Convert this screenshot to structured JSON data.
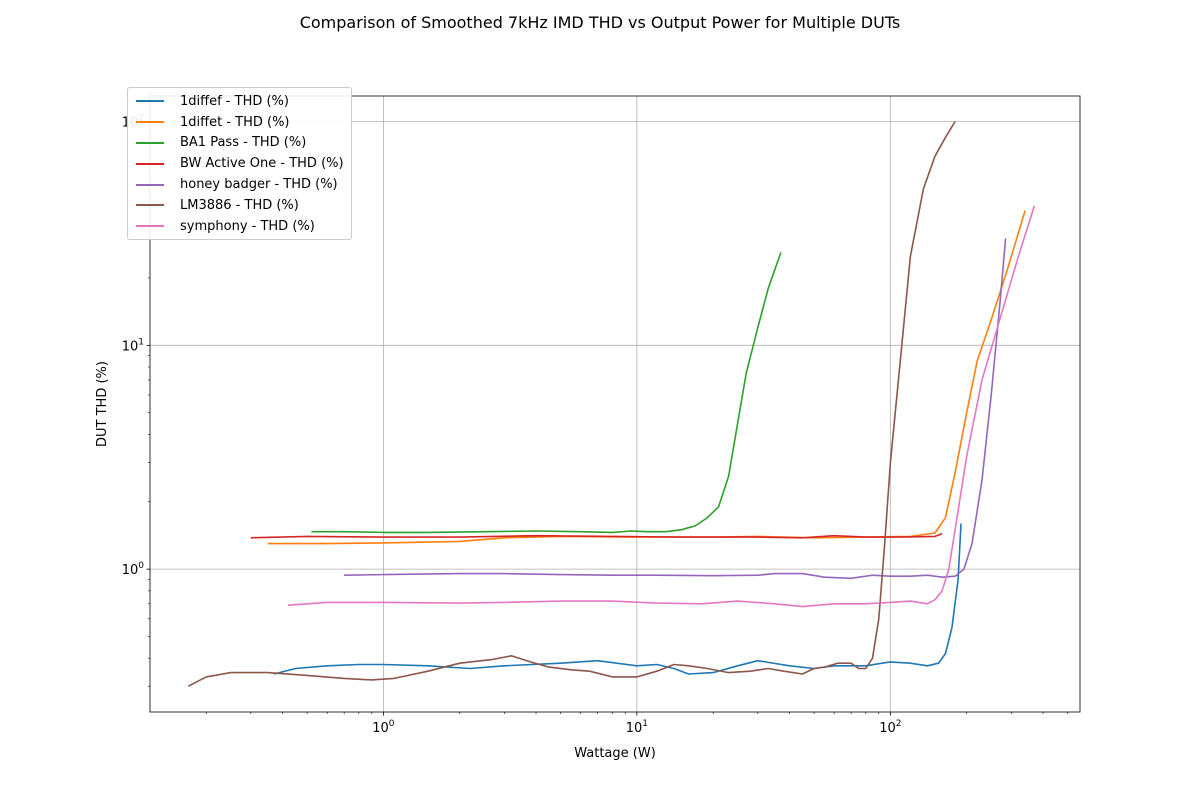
{
  "colors": {
    "series": [
      "#1f77b4",
      "#ff7f0e",
      "#2ca02c",
      "#d62728",
      "#9467bd",
      "#8c564b",
      "#e377c2"
    ],
    "grid": "#b0b0b0",
    "axis": "#000000"
  },
  "chart_data": {
    "type": "line",
    "title": "Comparison of Smoothed 7kHz IMD THD vs Output Power for Multiple DUTs",
    "xlabel": "Wattage (W)",
    "ylabel": "DUT THD (%)",
    "xscale": "log",
    "yscale": "log",
    "xlim": [
      0.12,
      560
    ],
    "ylim": [
      0.23,
      130
    ],
    "grid": true,
    "legend_position": "top-left",
    "x_ticks": [
      {
        "value": 1,
        "base": "10",
        "exp": "0"
      },
      {
        "value": 10,
        "base": "10",
        "exp": "1"
      },
      {
        "value": 100,
        "base": "10",
        "exp": "2"
      }
    ],
    "y_ticks": [
      {
        "value": 1,
        "base": "10",
        "exp": "0"
      },
      {
        "value": 10,
        "base": "10",
        "exp": "1"
      },
      {
        "value": 100,
        "base": "10",
        "exp": "2"
      }
    ],
    "series": [
      {
        "name": "1diffef - THD (%)",
        "points": [
          [
            0.37,
            0.34
          ],
          [
            0.45,
            0.36
          ],
          [
            0.6,
            0.37
          ],
          [
            0.8,
            0.375
          ],
          [
            1.0,
            0.375
          ],
          [
            1.5,
            0.37
          ],
          [
            2.2,
            0.36
          ],
          [
            3.0,
            0.37
          ],
          [
            5.0,
            0.38
          ],
          [
            7.0,
            0.39
          ],
          [
            10,
            0.37
          ],
          [
            12,
            0.375
          ],
          [
            14,
            0.36
          ],
          [
            16,
            0.34
          ],
          [
            20,
            0.345
          ],
          [
            25,
            0.37
          ],
          [
            30,
            0.39
          ],
          [
            40,
            0.37
          ],
          [
            50,
            0.36
          ],
          [
            60,
            0.37
          ],
          [
            80,
            0.37
          ],
          [
            100,
            0.385
          ],
          [
            120,
            0.38
          ],
          [
            140,
            0.37
          ],
          [
            155,
            0.38
          ],
          [
            165,
            0.42
          ],
          [
            175,
            0.55
          ],
          [
            185,
            0.9
          ],
          [
            190,
            1.6
          ]
        ]
      },
      {
        "name": "1diffet - THD (%)",
        "points": [
          [
            0.35,
            1.3
          ],
          [
            0.6,
            1.3
          ],
          [
            1.0,
            1.31
          ],
          [
            2.0,
            1.33
          ],
          [
            3.0,
            1.38
          ],
          [
            5.0,
            1.4
          ],
          [
            10,
            1.39
          ],
          [
            20,
            1.39
          ],
          [
            30,
            1.4
          ],
          [
            50,
            1.38
          ],
          [
            80,
            1.39
          ],
          [
            120,
            1.4
          ],
          [
            150,
            1.45
          ],
          [
            165,
            1.7
          ],
          [
            180,
            2.7
          ],
          [
            200,
            5.0
          ],
          [
            220,
            8.5
          ],
          [
            250,
            13
          ],
          [
            290,
            22
          ],
          [
            340,
            40
          ]
        ]
      },
      {
        "name": "BA1 Pass - THD (%)",
        "points": [
          [
            0.52,
            1.47
          ],
          [
            0.7,
            1.47
          ],
          [
            1.0,
            1.46
          ],
          [
            1.5,
            1.46
          ],
          [
            2.5,
            1.47
          ],
          [
            4.0,
            1.48
          ],
          [
            6.0,
            1.47
          ],
          [
            8.0,
            1.46
          ],
          [
            9.5,
            1.48
          ],
          [
            11,
            1.47
          ],
          [
            13,
            1.47
          ],
          [
            15,
            1.5
          ],
          [
            17,
            1.56
          ],
          [
            19,
            1.7
          ],
          [
            21,
            1.9
          ],
          [
            23,
            2.6
          ],
          [
            25,
            4.5
          ],
          [
            27,
            7.5
          ],
          [
            30,
            12
          ],
          [
            33,
            18
          ],
          [
            37,
            26
          ]
        ]
      },
      {
        "name": "BW Active One - THD (%)",
        "points": [
          [
            0.3,
            1.38
          ],
          [
            0.5,
            1.4
          ],
          [
            1.0,
            1.39
          ],
          [
            2.0,
            1.39
          ],
          [
            4.0,
            1.41
          ],
          [
            8.0,
            1.4
          ],
          [
            15,
            1.39
          ],
          [
            30,
            1.39
          ],
          [
            45,
            1.38
          ],
          [
            60,
            1.41
          ],
          [
            80,
            1.39
          ],
          [
            110,
            1.39
          ],
          [
            150,
            1.4
          ],
          [
            160,
            1.44
          ]
        ]
      },
      {
        "name": "honey badger - THD (%)",
        "points": [
          [
            0.7,
            0.94
          ],
          [
            1.0,
            0.945
          ],
          [
            2.0,
            0.955
          ],
          [
            3.0,
            0.955
          ],
          [
            5.0,
            0.945
          ],
          [
            8.0,
            0.94
          ],
          [
            12,
            0.94
          ],
          [
            20,
            0.935
          ],
          [
            30,
            0.94
          ],
          [
            35,
            0.955
          ],
          [
            45,
            0.955
          ],
          [
            55,
            0.92
          ],
          [
            70,
            0.91
          ],
          [
            85,
            0.94
          ],
          [
            100,
            0.93
          ],
          [
            120,
            0.93
          ],
          [
            140,
            0.94
          ],
          [
            160,
            0.92
          ],
          [
            180,
            0.93
          ],
          [
            195,
            1.0
          ],
          [
            210,
            1.3
          ],
          [
            230,
            2.5
          ],
          [
            250,
            6
          ],
          [
            270,
            15
          ],
          [
            285,
            30
          ]
        ]
      },
      {
        "name": "LM3886 - THD (%)",
        "points": [
          [
            0.17,
            0.3
          ],
          [
            0.2,
            0.33
          ],
          [
            0.25,
            0.345
          ],
          [
            0.35,
            0.345
          ],
          [
            0.5,
            0.335
          ],
          [
            0.7,
            0.325
          ],
          [
            0.9,
            0.32
          ],
          [
            1.1,
            0.325
          ],
          [
            1.5,
            0.35
          ],
          [
            2.0,
            0.38
          ],
          [
            2.7,
            0.395
          ],
          [
            3.2,
            0.41
          ],
          [
            3.8,
            0.385
          ],
          [
            4.5,
            0.365
          ],
          [
            5.5,
            0.355
          ],
          [
            6.5,
            0.35
          ],
          [
            8.0,
            0.33
          ],
          [
            10,
            0.33
          ],
          [
            12,
            0.35
          ],
          [
            14,
            0.375
          ],
          [
            16,
            0.37
          ],
          [
            19,
            0.36
          ],
          [
            23,
            0.345
          ],
          [
            28,
            0.35
          ],
          [
            33,
            0.36
          ],
          [
            38,
            0.35
          ],
          [
            45,
            0.34
          ],
          [
            50,
            0.36
          ],
          [
            55,
            0.365
          ],
          [
            62,
            0.38
          ],
          [
            70,
            0.38
          ],
          [
            75,
            0.36
          ],
          [
            80,
            0.36
          ],
          [
            85,
            0.4
          ],
          [
            90,
            0.6
          ],
          [
            95,
            1.3
          ],
          [
            100,
            3.0
          ],
          [
            110,
            9
          ],
          [
            120,
            25
          ],
          [
            135,
            50
          ],
          [
            150,
            70
          ],
          [
            165,
            85
          ],
          [
            180,
            100
          ]
        ]
      },
      {
        "name": "symphony - THD (%)",
        "points": [
          [
            0.42,
            0.69
          ],
          [
            0.6,
            0.71
          ],
          [
            1.0,
            0.71
          ],
          [
            2.0,
            0.705
          ],
          [
            3.0,
            0.71
          ],
          [
            5.0,
            0.72
          ],
          [
            8.0,
            0.72
          ],
          [
            12,
            0.705
          ],
          [
            18,
            0.7
          ],
          [
            25,
            0.72
          ],
          [
            35,
            0.7
          ],
          [
            45,
            0.68
          ],
          [
            60,
            0.7
          ],
          [
            80,
            0.7
          ],
          [
            100,
            0.71
          ],
          [
            120,
            0.72
          ],
          [
            140,
            0.7
          ],
          [
            150,
            0.73
          ],
          [
            160,
            0.8
          ],
          [
            170,
            1.0
          ],
          [
            180,
            1.5
          ],
          [
            200,
            3.2
          ],
          [
            230,
            7
          ],
          [
            270,
            13
          ],
          [
            320,
            25
          ],
          [
            370,
            42
          ]
        ]
      }
    ]
  }
}
